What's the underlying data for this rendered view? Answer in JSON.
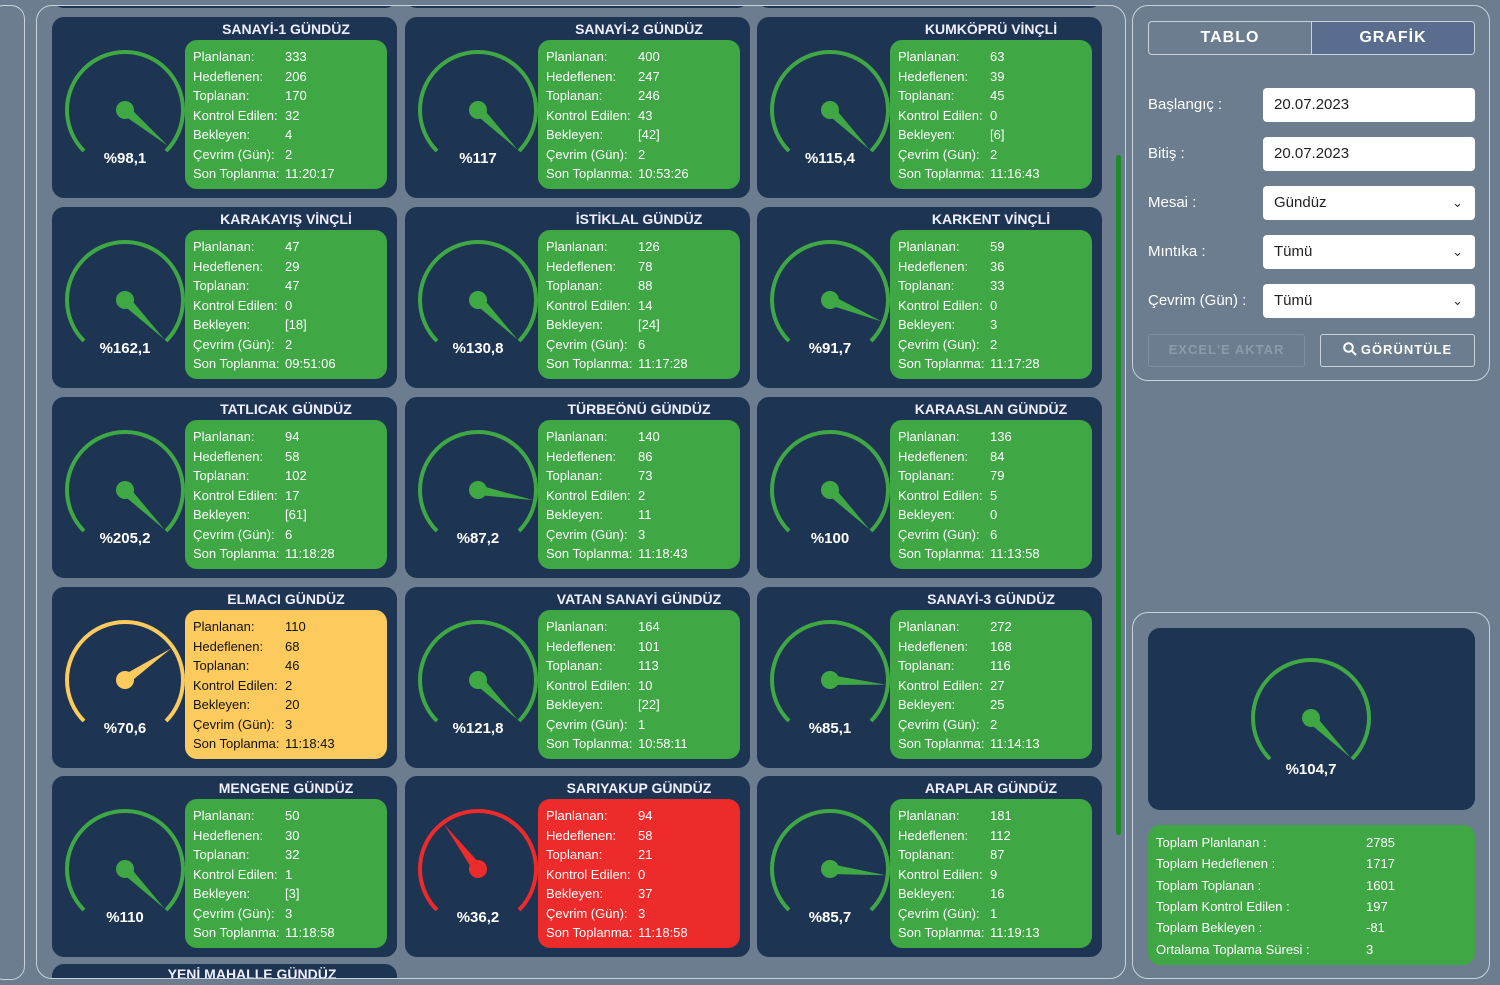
{
  "labels": {
    "planned": "Planlanan:",
    "targeted": "Hedeflenen:",
    "collected": "Toplanan:",
    "checked": "Kontrol Edilen:",
    "waiting": "Bekleyen:",
    "cycle": "Çevrim (Gün):",
    "last": "Son Toplanma:"
  },
  "colors": {
    "green": "#3fa845",
    "yellow": "#fdca5e",
    "red": "#ee2b2b",
    "card": "#1d3552"
  },
  "cards": [
    {
      "title": "SANAYİ-1 GÜNDÜZ",
      "percent": "%98,1",
      "value": 98.1,
      "status": "green",
      "planned": "333",
      "targeted": "206",
      "collected": "170",
      "checked": "32",
      "waiting": "4",
      "cycle": "2",
      "last": "11:20:17"
    },
    {
      "title": "SANAYİ-2 GÜNDÜZ",
      "percent": "%117",
      "value": 117,
      "status": "green",
      "planned": "400",
      "targeted": "247",
      "collected": "246",
      "checked": "43",
      "waiting": "[42]",
      "cycle": "2",
      "last": "10:53:26"
    },
    {
      "title": "KUMKÖPRÜ VİNÇLİ",
      "percent": "%115,4",
      "value": 115.4,
      "status": "green",
      "planned": "63",
      "targeted": "39",
      "collected": "45",
      "checked": "0",
      "waiting": "[6]",
      "cycle": "2",
      "last": "11:16:43"
    },
    {
      "title": "KARAKAYIŞ VİNÇLİ",
      "percent": "%162,1",
      "value": 162.1,
      "status": "green",
      "planned": "47",
      "targeted": "29",
      "collected": "47",
      "checked": "0",
      "waiting": "[18]",
      "cycle": "2",
      "last": "09:51:06"
    },
    {
      "title": "İSTİKLAL GÜNDÜZ",
      "percent": "%130,8",
      "value": 130.8,
      "status": "green",
      "planned": "126",
      "targeted": "78",
      "collected": "88",
      "checked": "14",
      "waiting": "[24]",
      "cycle": "6",
      "last": "11:17:28"
    },
    {
      "title": "KARKENT VİNÇLİ",
      "percent": "%91,7",
      "value": 91.7,
      "status": "green",
      "planned": "59",
      "targeted": "36",
      "collected": "33",
      "checked": "0",
      "waiting": "3",
      "cycle": "2",
      "last": "11:17:28"
    },
    {
      "title": "TATLICAK GÜNDÜZ",
      "percent": "%205,2",
      "value": 205.2,
      "status": "green",
      "planned": "94",
      "targeted": "58",
      "collected": "102",
      "checked": "17",
      "waiting": "[61]",
      "cycle": "6",
      "last": "11:18:28"
    },
    {
      "title": "TÜRBEÖNÜ GÜNDÜZ",
      "percent": "%87,2",
      "value": 87.2,
      "status": "green",
      "planned": "140",
      "targeted": "86",
      "collected": "73",
      "checked": "2",
      "waiting": "11",
      "cycle": "3",
      "last": "11:18:43"
    },
    {
      "title": "KARAASLAN GÜNDÜZ",
      "percent": "%100",
      "value": 100,
      "status": "green",
      "planned": "136",
      "targeted": "84",
      "collected": "79",
      "checked": "5",
      "waiting": "0",
      "cycle": "6",
      "last": "11:13:58"
    },
    {
      "title": "ELMACI GÜNDÜZ",
      "percent": "%70,6",
      "value": 70.6,
      "status": "yellow",
      "planned": "110",
      "targeted": "68",
      "collected": "46",
      "checked": "2",
      "waiting": "20",
      "cycle": "3",
      "last": "11:18:43"
    },
    {
      "title": "VATAN SANAYİ GÜNDÜZ",
      "percent": "%121,8",
      "value": 121.8,
      "status": "green",
      "planned": "164",
      "targeted": "101",
      "collected": "113",
      "checked": "10",
      "waiting": "[22]",
      "cycle": "1",
      "last": "10:58:11"
    },
    {
      "title": "SANAYİ-3 GÜNDÜZ",
      "percent": "%85,1",
      "value": 85.1,
      "status": "green",
      "planned": "272",
      "targeted": "168",
      "collected": "116",
      "checked": "27",
      "waiting": "25",
      "cycle": "2",
      "last": "11:14:13"
    },
    {
      "title": "MENGENE GÜNDÜZ",
      "percent": "%110",
      "value": 110,
      "status": "green",
      "planned": "50",
      "targeted": "30",
      "collected": "32",
      "checked": "1",
      "waiting": "[3]",
      "cycle": "3",
      "last": "11:18:58"
    },
    {
      "title": "SARIYAKUP GÜNDÜZ",
      "percent": "%36,2",
      "value": 36.2,
      "status": "red",
      "planned": "94",
      "targeted": "58",
      "collected": "21",
      "checked": "0",
      "waiting": "37",
      "cycle": "3",
      "last": "11:18:58"
    },
    {
      "title": "ARAPLAR GÜNDÜZ",
      "percent": "%85,7",
      "value": 85.7,
      "status": "green",
      "planned": "181",
      "targeted": "112",
      "collected": "87",
      "checked": "9",
      "waiting": "16",
      "cycle": "1",
      "last": "11:19:13"
    }
  ],
  "partial_card": {
    "title": "YENİ MAHALLE GÜNDÜZ"
  },
  "tabs": {
    "table": "TABLO",
    "chart": "GRAFİK"
  },
  "filters": {
    "start_label": "Başlangıç :",
    "start_value": "20.07.2023",
    "end_label": "Bitiş :",
    "end_value": "20.07.2023",
    "shift_label": "Mesai :",
    "shift_value": "Gündüz",
    "region_label": "Mıntıka :",
    "region_value": "Tümü",
    "cycle_label": "Çevrim (Gün) :",
    "cycle_value": "Tümü"
  },
  "buttons": {
    "excel": "EXCEL'E AKTAR",
    "view": "GÖRÜNTÜLE"
  },
  "summary": {
    "percent": "%104,7",
    "value": 104.7,
    "rows": [
      {
        "k": "Toplam Planlanan :",
        "v": "2785"
      },
      {
        "k": "Toplam Hedeflenen :",
        "v": "1717"
      },
      {
        "k": "Toplam Toplanan :",
        "v": "1601"
      },
      {
        "k": "Toplam Kontrol Edilen :",
        "v": "197"
      },
      {
        "k": "Toplam Bekleyen :",
        "v": "-81"
      },
      {
        "k": "Ortalama Toplama Süresi :",
        "v": "3"
      }
    ]
  }
}
